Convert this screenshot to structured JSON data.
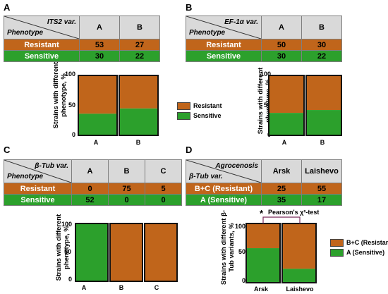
{
  "colors": {
    "resistant": "#c0651b",
    "sensitive": "#2ca02c",
    "header": "#d9d9d9"
  },
  "panels": {
    "A": {
      "label": "A",
      "var": "ITS2 var.",
      "phen": "Phenotype",
      "cols": [
        "A",
        "B"
      ],
      "rows": [
        {
          "name": "Resistant",
          "vals": [
            "53",
            "27"
          ]
        },
        {
          "name": "Sensitive",
          "vals": [
            "30",
            "22"
          ]
        }
      ]
    },
    "B": {
      "label": "B",
      "var": "EF-1α var.",
      "phen": "Phenotype",
      "cols": [
        "A",
        "B"
      ],
      "rows": [
        {
          "name": "Resistant",
          "vals": [
            "50",
            "30"
          ]
        },
        {
          "name": "Sensitive",
          "vals": [
            "30",
            "22"
          ]
        }
      ]
    },
    "C": {
      "label": "C",
      "var": "β-Tub var.",
      "phen": "Phenotype",
      "cols": [
        "A",
        "B",
        "C"
      ],
      "rows": [
        {
          "name": "Resistant",
          "vals": [
            "0",
            "75",
            "5"
          ]
        },
        {
          "name": "Sensitive",
          "vals": [
            "52",
            "0",
            "0"
          ]
        }
      ]
    },
    "D": {
      "label": "D",
      "var": "Agrocenosis",
      "phen": "β-Tub var.",
      "cols": [
        "Arsk",
        "Laishevo"
      ],
      "rows": [
        {
          "name": "B+C (Resistant)",
          "vals": [
            "25",
            "55"
          ]
        },
        {
          "name": "A (Sensitive)",
          "vals": [
            "35",
            "17"
          ]
        }
      ]
    }
  },
  "chart_data": [
    {
      "type": "bar",
      "panel": "A",
      "stacked": true,
      "categories": [
        "A",
        "B"
      ],
      "series": [
        {
          "name": "Sensitive",
          "values": [
            36.1,
            44.9
          ]
        },
        {
          "name": "Resistant",
          "values": [
            63.9,
            55.1
          ]
        }
      ],
      "ylabel": "Strains with different phenotype, %",
      "ylim": [
        0,
        100
      ],
      "yticks": [
        "0",
        "50",
        "100"
      ],
      "legend": [
        "Resistant",
        "Sensitive"
      ]
    },
    {
      "type": "bar",
      "panel": "B",
      "stacked": true,
      "categories": [
        "A",
        "B"
      ],
      "series": [
        {
          "name": "Sensitive",
          "values": [
            37.5,
            42.3
          ]
        },
        {
          "name": "Resistant",
          "values": [
            62.5,
            57.7
          ]
        }
      ],
      "ylabel": "Strains with different phenotype, %",
      "ylim": [
        0,
        100
      ],
      "yticks": [
        "0",
        "50",
        "100"
      ]
    },
    {
      "type": "bar",
      "panel": "C",
      "stacked": true,
      "categories": [
        "A",
        "B",
        "C"
      ],
      "series": [
        {
          "name": "Sensitive",
          "values": [
            100,
            0,
            0
          ]
        },
        {
          "name": "Resistant",
          "values": [
            0,
            100,
            100
          ]
        }
      ],
      "ylabel": "Strains with different phenotype, %",
      "ylim": [
        0,
        100
      ],
      "yticks": [
        "0",
        "50",
        "100"
      ]
    },
    {
      "type": "bar",
      "panel": "D",
      "stacked": true,
      "categories": [
        "Arsk",
        "Laishevo"
      ],
      "series": [
        {
          "name": "A (Sensitive)",
          "values": [
            58.3,
            23.6
          ]
        },
        {
          "name": "B+C (Resistant)",
          "values": [
            41.7,
            76.4
          ]
        }
      ],
      "ylabel": "Strains with different β-Tub variants, %",
      "ylim": [
        0,
        100
      ],
      "yticks": [
        "0",
        "50",
        "100"
      ],
      "legend": [
        "B+C (Resistant)",
        "A (Sensitive)"
      ],
      "annotation": "Pearson's χ²-test",
      "annotation_mark": "*"
    }
  ]
}
